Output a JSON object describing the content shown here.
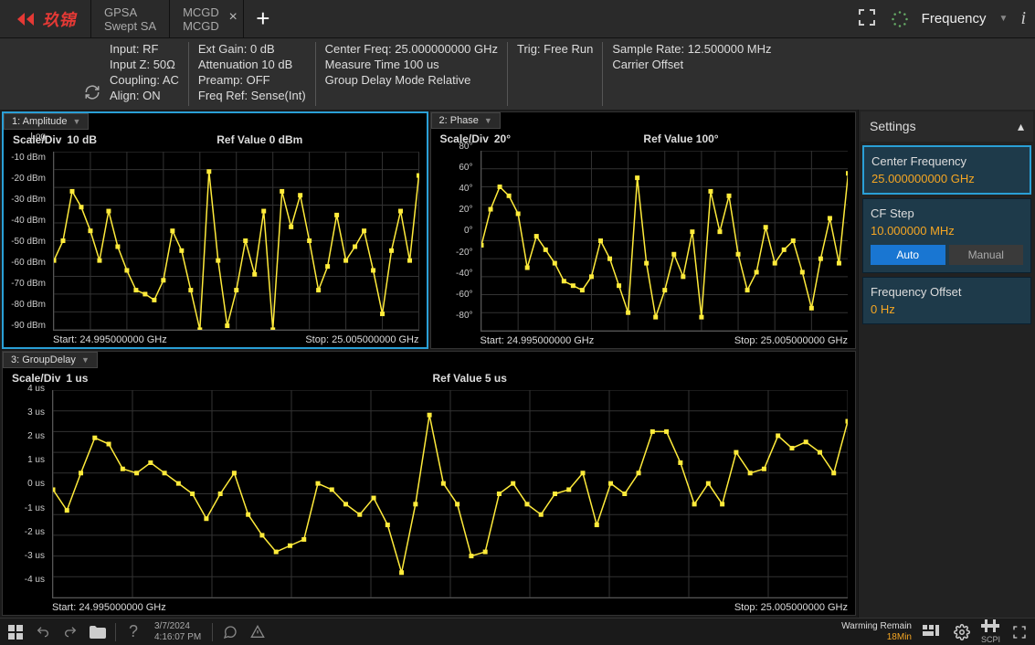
{
  "colors": {
    "trace": "#ffeb3b",
    "grid": "#333333",
    "bg_chart": "#000000",
    "accent": "#2a9fd6",
    "value_orange": "#f5a623",
    "panel_bg": "#1e3a4a",
    "logo": "#e53935",
    "btn_active": "#1976d2"
  },
  "logo_text": "玖锦",
  "tabs": [
    {
      "line1": "GPSA",
      "line2": "Swept SA"
    },
    {
      "line1": "MCGD",
      "line2": "MCGD"
    }
  ],
  "top_right": {
    "label": "Frequency"
  },
  "info": {
    "col1": [
      "Input: RF",
      "Input Z: 50Ω",
      "Coupling: AC",
      "Align: ON"
    ],
    "col2": [
      "Ext Gain: 0 dB",
      "Attenuation 10 dB",
      "Preamp: OFF",
      "Freq Ref: Sense(Int)"
    ],
    "col3": [
      "Center Freq: 25.000000000 GHz",
      "Measure Time 100 us",
      "Group Delay Mode Relative"
    ],
    "col4": [
      "Trig: Free Run"
    ],
    "col5": [
      "Sample Rate: 12.500000 MHz",
      "Carrier Offset"
    ]
  },
  "charts": {
    "amplitude": {
      "tab": "1: Amplitude",
      "scale_label": "Scale/Div",
      "scale_value": "10 dB",
      "ref_label": "Ref Value",
      "ref_value": "0 dBm",
      "ylabels": [
        "Log",
        "-10 dBm",
        "-20 dBm",
        "-30 dBm",
        "-40 dBm",
        "-50 dBm",
        "-60 dBm",
        "-70 dBm",
        "-80 dBm",
        "-90 dBm"
      ],
      "ylim": [
        -90,
        0
      ],
      "start": "Start: 24.995000000 GHz",
      "stop": "Stop: 25.005000000 GHz",
      "data": [
        -55,
        -45,
        -20,
        -28,
        -40,
        -55,
        -30,
        -48,
        -60,
        -70,
        -72,
        -75,
        -65,
        -40,
        -50,
        -70,
        -90,
        -10,
        -55,
        -88,
        -70,
        -45,
        -62,
        -30,
        -90,
        -20,
        -38,
        -22,
        -45,
        -70,
        -58,
        -32,
        -55,
        -48,
        -40,
        -60,
        -82,
        -50,
        -30,
        -55,
        -12
      ]
    },
    "phase": {
      "tab": "2: Phase",
      "scale_label": "Scale/Div",
      "scale_value": "20°",
      "ref_label": "Ref Value",
      "ref_value": "100°",
      "ylabels": [
        "",
        "80°",
        "60°",
        "40°",
        "20°",
        "0°",
        "-20°",
        "-40°",
        "-60°",
        "-80°",
        ""
      ],
      "ylim": [
        -100,
        100
      ],
      "start": "Start: 24.995000000 GHz",
      "stop": "Stop: 25.005000000 GHz",
      "data": [
        -5,
        35,
        60,
        50,
        30,
        -30,
        5,
        -10,
        -25,
        -45,
        -50,
        -55,
        -40,
        0,
        -20,
        -50,
        -80,
        70,
        -25,
        -85,
        -55,
        -15,
        -40,
        10,
        -85,
        55,
        10,
        50,
        -15,
        -55,
        -35,
        15,
        -25,
        -10,
        0,
        -35,
        -75,
        -20,
        25,
        -25,
        75
      ]
    },
    "groupdelay": {
      "tab": "3: GroupDelay",
      "scale_label": "Scale/Div",
      "scale_value": "1 us",
      "ref_label": "Ref Value",
      "ref_value": "5  us",
      "ylabels": [
        "",
        "4 us",
        "3 us",
        "2 us",
        "1 us",
        "0 us",
        "-1 us",
        "-2 us",
        "-3 us",
        "-4 us",
        ""
      ],
      "ylim": [
        -5,
        5
      ],
      "start": "Start: 24.995000000 GHz",
      "stop": "Stop: 25.005000000 GHz",
      "data": [
        0.2,
        -0.8,
        1,
        2.7,
        2.4,
        1.2,
        1,
        1.5,
        1,
        0.5,
        0,
        -1.2,
        0,
        1,
        -1,
        -2,
        -2.8,
        -2.5,
        -2.2,
        0.5,
        0.2,
        -0.5,
        -1,
        -0.2,
        -1.5,
        -3.8,
        -0.5,
        3.8,
        0.5,
        -0.5,
        -3,
        -2.8,
        0,
        0.5,
        -0.5,
        -1,
        0,
        0.2,
        1,
        -1.5,
        0.5,
        0,
        1,
        3,
        3,
        1.5,
        -0.5,
        0.5,
        -0.5,
        2,
        1,
        1.2,
        2.8,
        2.2,
        2.5,
        2,
        1,
        3.5
      ]
    }
  },
  "sidebar": {
    "header": "Settings",
    "center_freq": {
      "title": "Center Frequency",
      "value": "25.000000000 GHz"
    },
    "cf_step": {
      "title": "CF Step",
      "value": "10.000000 MHz",
      "auto": "Auto",
      "manual": "Manual"
    },
    "freq_offset": {
      "title": "Frequency Offset",
      "value": "0  Hz"
    }
  },
  "bottom": {
    "date": "3/7/2024",
    "time": "4:16:07 PM",
    "warming_label": "Warming Remain",
    "warming_value": "18Min",
    "scpi": "SCPI"
  }
}
